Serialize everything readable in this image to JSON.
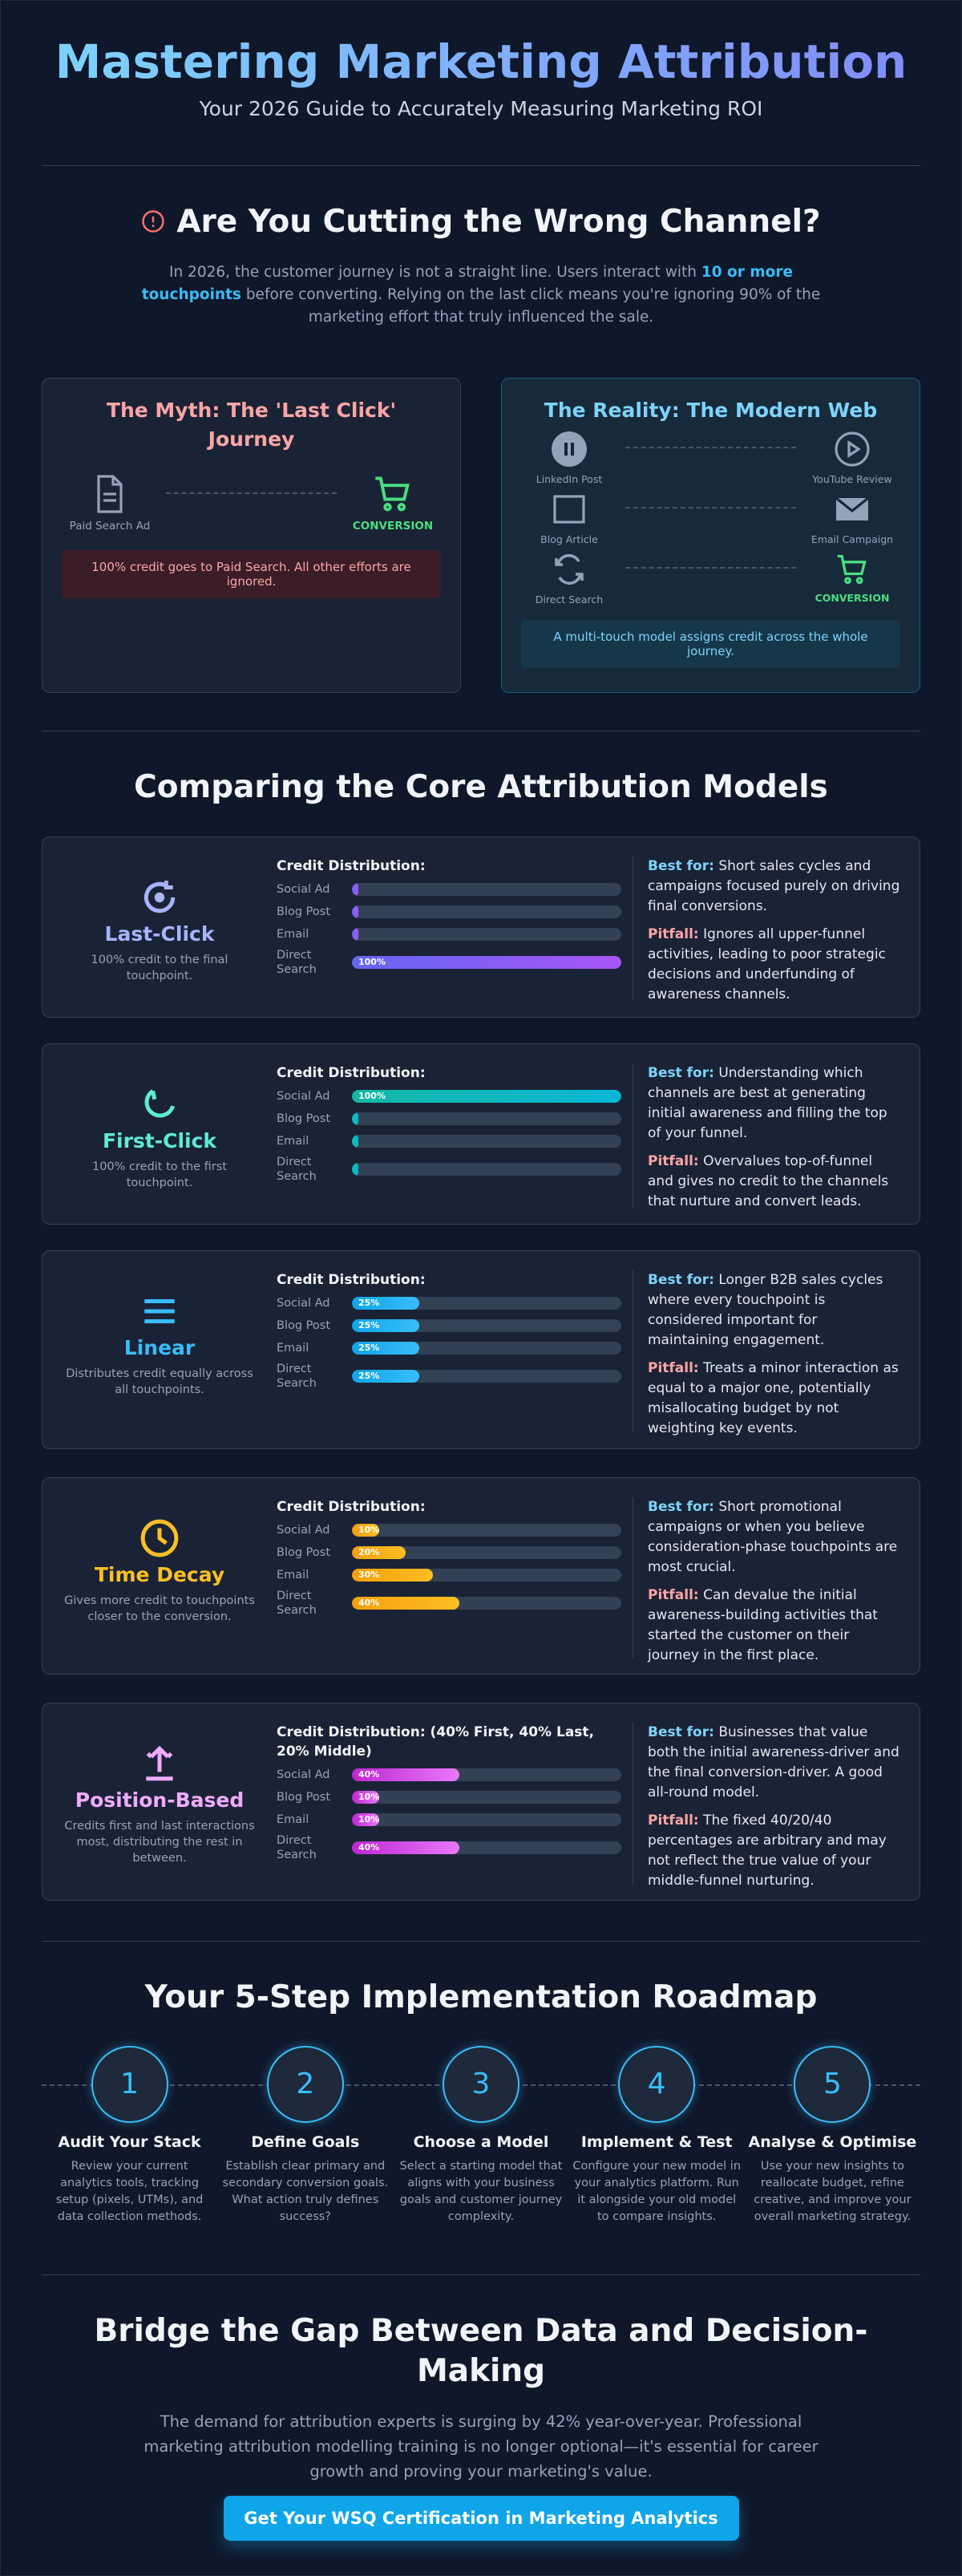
{
  "header": {
    "title": "Mastering Marketing Attribution",
    "subtitle": "Your 2026 Guide to Accurately Measuring Marketing ROI"
  },
  "problem": {
    "heading": "Are You Cutting the Wrong Channel?",
    "text_before": "In 2026, the customer journey is not a straight line. Users interact with ",
    "highlight": "10 or more touchpoints",
    "text_after": " before converting. Relying on the last click means you're ignoring 90% of the marketing effort that truly influenced the sale."
  },
  "myth": {
    "title": "The Myth: The 'Last Click' Journey",
    "from": "Paid Search Ad",
    "to": "CONVERSION",
    "note": "100% credit goes to Paid Search. All other efforts are ignored."
  },
  "reality": {
    "title": "The Reality: The Modern Web",
    "touchpoints": [
      "LinkedIn Post",
      "YouTube Review",
      "Blog Article",
      "Email Campaign",
      "Direct Search",
      "CONVERSION"
    ],
    "note": "A multi-touch model assigns credit across the whole journey."
  },
  "models": {
    "heading": "Comparing the Core Attribution Models",
    "items": [
      {
        "name": "Last-Click",
        "description": "100% credit to the final touchpoint.",
        "distribution_title": "Credit Distribution:",
        "channels": [
          {
            "name": "Social Ad",
            "value": 0
          },
          {
            "name": "Blog Post",
            "value": 0
          },
          {
            "name": "Email",
            "value": 0
          },
          {
            "name": "Direct Search",
            "value": 100,
            "label": "100%"
          }
        ],
        "best_for_label": "Best for:",
        "best_for": "Short sales cycles and campaigns focused purely on driving final conversions.",
        "pitfall_label": "Pitfall:",
        "pitfall": "Ignores all upper-funnel activities, leading to poor strategic decisions and underfunding of awareness channels."
      },
      {
        "name": "First-Click",
        "description": "100% credit to the first touchpoint.",
        "distribution_title": "Credit Distribution:",
        "channels": [
          {
            "name": "Social Ad",
            "value": 100,
            "label": "100%"
          },
          {
            "name": "Blog Post",
            "value": 0
          },
          {
            "name": "Email",
            "value": 0
          },
          {
            "name": "Direct Search",
            "value": 0
          }
        ],
        "best_for_label": "Best for:",
        "best_for": "Understanding which channels are best at generating initial awareness and filling the top of your funnel.",
        "pitfall_label": "Pitfall:",
        "pitfall": "Overvalues top-of-funnel and gives no credit to the channels that nurture and convert leads."
      },
      {
        "name": "Linear",
        "description": "Distributes credit equally across all touchpoints.",
        "distribution_title": "Credit Distribution:",
        "channels": [
          {
            "name": "Social Ad",
            "value": 25,
            "label": "25%"
          },
          {
            "name": "Blog Post",
            "value": 25,
            "label": "25%"
          },
          {
            "name": "Email",
            "value": 25,
            "label": "25%"
          },
          {
            "name": "Direct Search",
            "value": 25,
            "label": "25%"
          }
        ],
        "best_for_label": "Best for:",
        "best_for": "Longer B2B sales cycles where every touchpoint is considered important for maintaining engagement.",
        "pitfall_label": "Pitfall:",
        "pitfall": "Treats a minor interaction as equal to a major one, potentially misallocating budget by not weighting key events."
      },
      {
        "name": "Time Decay",
        "description": "Gives more credit to touchpoints closer to the conversion.",
        "distribution_title": "Credit Distribution:",
        "channels": [
          {
            "name": "Social Ad",
            "value": 10,
            "label": "10%"
          },
          {
            "name": "Blog Post",
            "value": 20,
            "label": "20%"
          },
          {
            "name": "Email",
            "value": 30,
            "label": "30%"
          },
          {
            "name": "Direct Search",
            "value": 40,
            "label": "40%"
          }
        ],
        "best_for_label": "Best for:",
        "best_for": "Short promotional campaigns or when you believe consideration-phase touchpoints are most crucial.",
        "pitfall_label": "Pitfall:",
        "pitfall": "Can devalue the initial awareness-building activities that started the customer on their journey in the first place."
      },
      {
        "name": "Position-Based",
        "description": "Credits first and last interactions most, distributing the rest in between.",
        "distribution_title": "Credit Distribution: (40% First, 40% Last, 20% Middle)",
        "channels": [
          {
            "name": "Social Ad",
            "value": 40,
            "label": "40%"
          },
          {
            "name": "Blog Post",
            "value": 10,
            "label": "10%"
          },
          {
            "name": "Email",
            "value": 10,
            "label": "10%"
          },
          {
            "name": "Direct Search",
            "value": 40,
            "label": "40%"
          }
        ],
        "best_for_label": "Best for:",
        "best_for": "Businesses that value both the initial awareness-driver and the final conversion-driver. A good all-round model.",
        "pitfall_label": "Pitfall:",
        "pitfall": "The fixed 40/20/40 percentages are arbitrary and may not reflect the true value of your middle-funnel nurturing."
      }
    ]
  },
  "roadmap": {
    "heading": "Your 5-Step Implementation Roadmap",
    "steps": [
      {
        "number": 1,
        "title": "Audit Your Stack",
        "text": "Review your current analytics tools, tracking setup (pixels, UTMs), and data collection methods."
      },
      {
        "number": 2,
        "title": "Define Goals",
        "text": "Establish clear primary and secondary conversion goals. What action truly defines success?"
      },
      {
        "number": 3,
        "title": "Choose a Model",
        "text": "Select a starting model that aligns with your business goals and customer journey complexity."
      },
      {
        "number": 4,
        "title": "Implement & Test",
        "text": "Configure your new model in your analytics platform. Run it alongside your old model to compare insights."
      },
      {
        "number": 5,
        "title": "Analyse & Optimise",
        "text": "Use your new insights to reallocate budget, refine creative, and improve your overall marketing strategy."
      }
    ]
  },
  "cta": {
    "heading": "Bridge the Gap Between Data and Decision-Making",
    "text": "The demand for attribution experts is surging by 42% year-over-year. Professional marketing attribution modelling training is no longer optional—it's essential for career growth and proving your marketing's value.",
    "button": "Get Your WSQ Certification in Marketing Analytics",
    "url": "https://www.clickacademyasia.com"
  }
}
